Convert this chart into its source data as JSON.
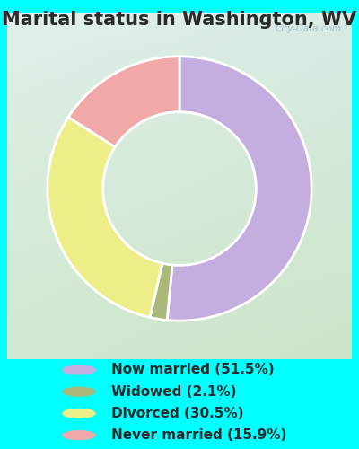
{
  "title": "Marital status in Washington, WV",
  "slices": [
    51.5,
    2.1,
    30.5,
    15.9
  ],
  "labels": [
    "Now married (51.5%)",
    "Widowed (2.1%)",
    "Divorced (30.5%)",
    "Never married (15.9%)"
  ],
  "colors": [
    "#c4aee0",
    "#aab87a",
    "#eeee88",
    "#f0a8a8"
  ],
  "bg_color": "#00ffff",
  "panel_top_left": "#d8ece0",
  "panel_bot_right": "#d4e8c8",
  "watermark": "City-Data.com",
  "title_fontsize": 15,
  "legend_fontsize": 11,
  "startangle": 90,
  "donut_width": 0.42
}
